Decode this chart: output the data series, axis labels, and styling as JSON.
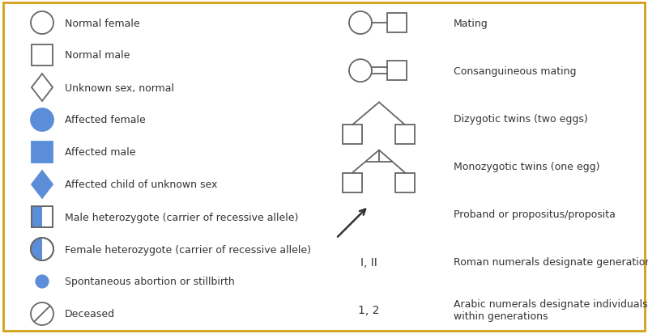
{
  "bg_color": "#ffffff",
  "border_color": "#d4a017",
  "blue_fill": "#5b8dd9",
  "text_color": "#333333",
  "left_labels": [
    "Normal female",
    "Normal male",
    "Unknown sex, normal",
    "Affected female",
    "Affected male",
    "Affected child of unknown sex",
    "Male heterozygote (carrier of recessive allele)",
    "Female heterozygote (carrier of recessive allele)",
    "Spontaneous abortion or stillbirth",
    "Deceased"
  ],
  "right_labels": [
    "Mating",
    "Consanguineous mating",
    "Dizygotic twins (two eggs)",
    "Monozygotic twins (one egg)",
    "Proband or propositus/proposita",
    "Roman numerals designate generation number",
    "Arabic numerals designate individuals\nwithin generations"
  ],
  "font_size": 9,
  "lw": 1.3
}
